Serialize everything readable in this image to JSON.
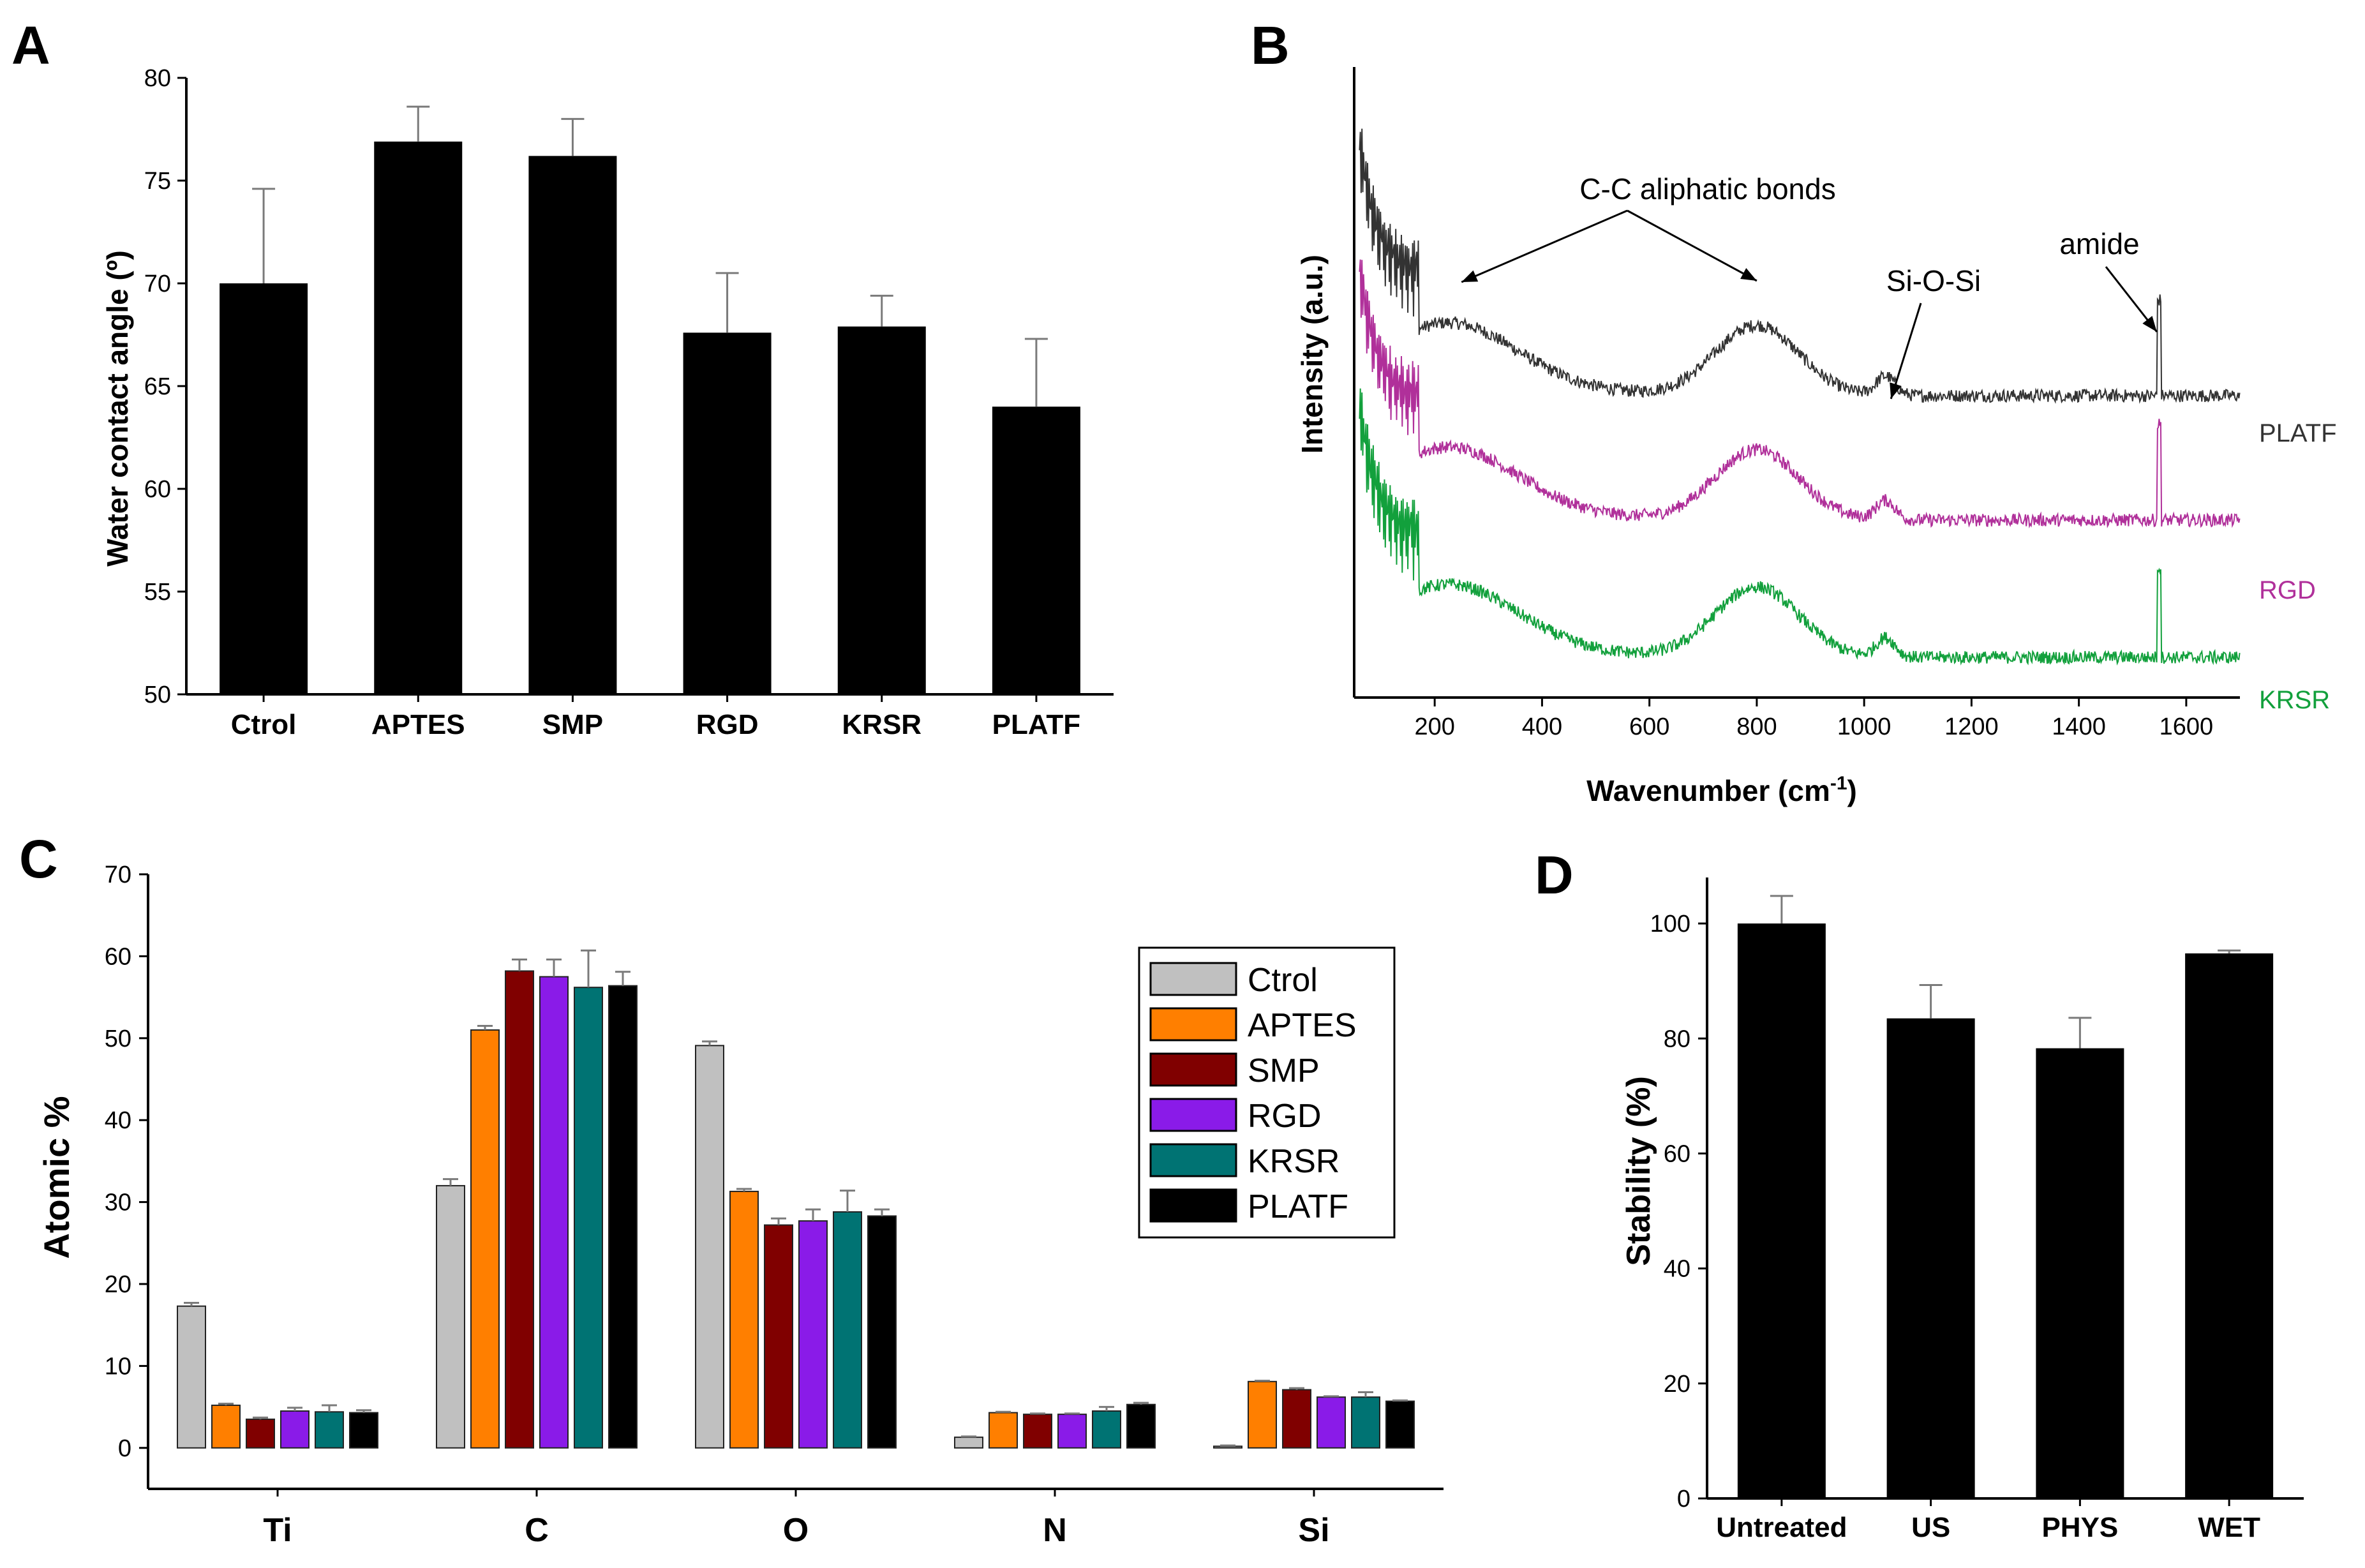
{
  "colors": {
    "Ctrol": "#c0c0c0",
    "APTES": "#ff7f00",
    "SMP": "#800000",
    "RGD": "#8a1be8",
    "KRSR": "#007373",
    "PLATF": "#000000",
    "trace_platf": "#333333",
    "trace_rgd": "#b0309a",
    "trace_krsr": "#12a03c"
  },
  "chart_data": [
    {
      "panel": "A",
      "type": "bar",
      "xlabel": "",
      "ylabel": "Water contact angle (º)",
      "ylim": [
        50,
        80
      ],
      "yticks": [
        50,
        55,
        60,
        65,
        70,
        75,
        80
      ],
      "categories": [
        "Ctrol",
        "APTES",
        "SMP",
        "RGD",
        "KRSR",
        "PLATF"
      ],
      "values": [
        70.0,
        76.9,
        76.2,
        67.6,
        67.9,
        64.0
      ],
      "errors": [
        4.6,
        1.7,
        1.8,
        2.9,
        1.5,
        3.3
      ]
    },
    {
      "panel": "B",
      "type": "line",
      "xlabel": "Wavenumber (cm",
      "xlabel_sup": "-1",
      "xlabel_close": ")",
      "ylabel": "Intensity (a.u.)",
      "xlim": [
        50,
        1700
      ],
      "xticks": [
        200,
        400,
        600,
        800,
        1000,
        1200,
        1400,
        1600
      ],
      "series": [
        {
          "name": "PLATF",
          "offset": 2.0
        },
        {
          "name": "RGD",
          "offset": 1.0
        },
        {
          "name": "KRSR",
          "offset": 0.0
        }
      ],
      "annotations": [
        {
          "text": "C-C aliphatic bonds",
          "points_to": [
            250,
            800
          ]
        },
        {
          "text": "Si-O-Si",
          "points_to": [
            1050
          ]
        },
        {
          "text": "amide",
          "points_to": [
            1550
          ]
        }
      ]
    },
    {
      "panel": "C",
      "type": "bar",
      "xlabel": "",
      "ylabel": "Atomic %",
      "ylim": [
        -5,
        70
      ],
      "yticks": [
        0,
        10,
        20,
        30,
        40,
        50,
        60,
        70
      ],
      "categories": [
        "Ti",
        "C",
        "O",
        "N",
        "Si"
      ],
      "legend_position": "top-right",
      "series": [
        {
          "name": "Ctrol",
          "values": [
            17.3,
            32.0,
            49.1,
            1.3,
            0.2
          ],
          "errors": [
            0.4,
            0.8,
            0.5,
            0.1,
            0.1
          ]
        },
        {
          "name": "APTES",
          "values": [
            5.2,
            51.0,
            31.3,
            4.3,
            8.1
          ],
          "errors": [
            0.2,
            0.5,
            0.3,
            0.1,
            0.1
          ]
        },
        {
          "name": "SMP",
          "values": [
            3.5,
            58.2,
            27.2,
            4.1,
            7.1
          ],
          "errors": [
            0.2,
            1.4,
            0.8,
            0.1,
            0.2
          ]
        },
        {
          "name": "RGD",
          "values": [
            4.5,
            57.5,
            27.7,
            4.1,
            6.2
          ],
          "errors": [
            0.4,
            2.1,
            1.4,
            0.1,
            0.1
          ]
        },
        {
          "name": "KRSR",
          "values": [
            4.4,
            56.2,
            28.8,
            4.5,
            6.2
          ],
          "errors": [
            0.8,
            4.5,
            2.6,
            0.5,
            0.6
          ]
        },
        {
          "name": "PLATF",
          "values": [
            4.3,
            56.4,
            28.3,
            5.3,
            5.7
          ],
          "errors": [
            0.3,
            1.7,
            0.8,
            0.2,
            0.1
          ]
        }
      ]
    },
    {
      "panel": "D",
      "type": "bar",
      "xlabel": "",
      "ylabel": "Stability (%)",
      "ylim": [
        0,
        108
      ],
      "yticks": [
        0,
        20,
        40,
        60,
        80,
        100
      ],
      "categories": [
        "Untreated",
        "US",
        "PHYS",
        "WET"
      ],
      "values": [
        100.0,
        83.5,
        78.3,
        94.8
      ],
      "errors": [
        4.8,
        5.8,
        5.3,
        0.5
      ]
    }
  ]
}
